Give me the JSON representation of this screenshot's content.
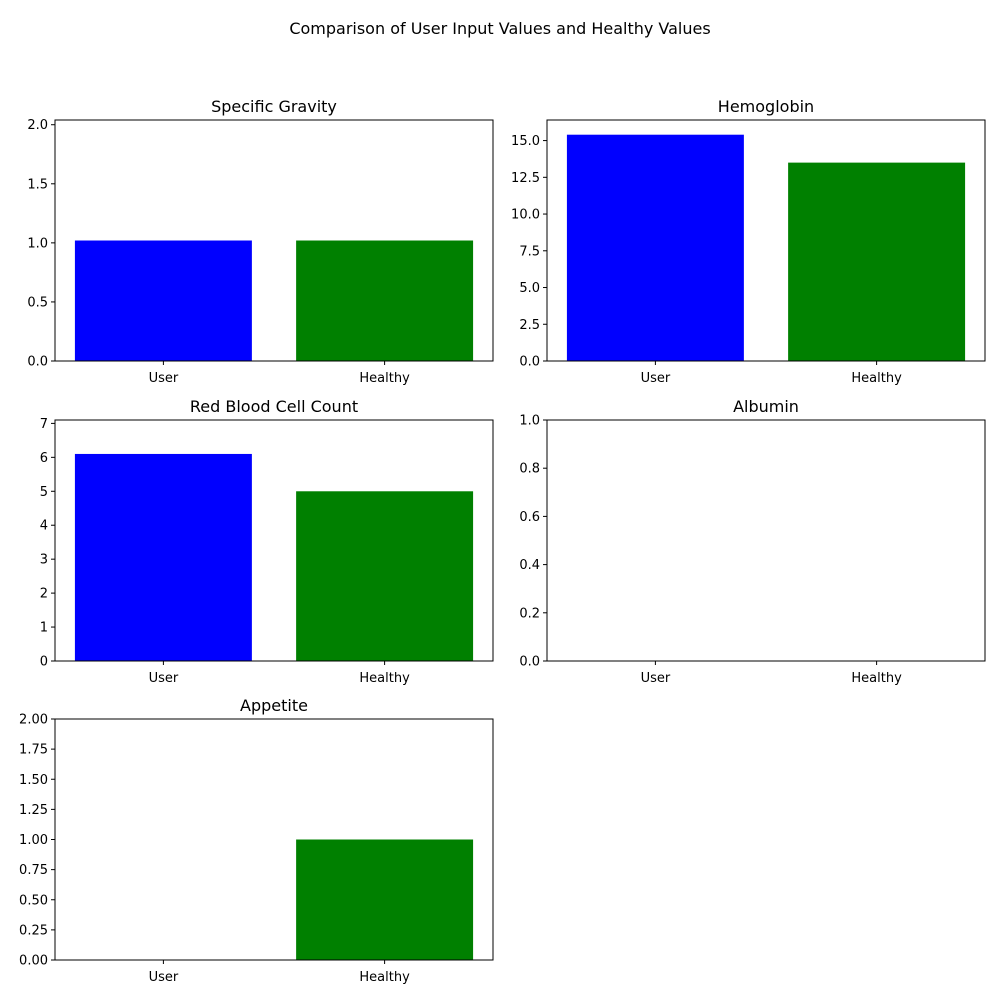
{
  "suptitle": "Comparison of User Input Values and Healthy Values",
  "colors": {
    "user": "#0000ff",
    "healthy": "#008000"
  },
  "chart_data": [
    {
      "type": "bar",
      "title": "Specific Gravity",
      "categories": [
        "User",
        "Healthy"
      ],
      "values": [
        1.02,
        1.02
      ],
      "ylim": [
        0,
        2.04
      ],
      "yticks": [
        0.0,
        0.5,
        1.0,
        1.5,
        2.0
      ],
      "ytick_labels": [
        "0.0",
        "0.5",
        "1.0",
        "1.5",
        "2.0"
      ],
      "grid": false
    },
    {
      "type": "bar",
      "title": "Hemoglobin",
      "categories": [
        "User",
        "Healthy"
      ],
      "values": [
        15.4,
        13.5
      ],
      "ylim": [
        0,
        16.4
      ],
      "yticks": [
        0.0,
        2.5,
        5.0,
        7.5,
        10.0,
        12.5,
        15.0
      ],
      "ytick_labels": [
        "0.0",
        "2.5",
        "5.0",
        "7.5",
        "10.0",
        "12.5",
        "15.0"
      ],
      "grid": false
    },
    {
      "type": "bar",
      "title": "Red Blood Cell Count",
      "categories": [
        "User",
        "Healthy"
      ],
      "values": [
        6.1,
        5.0
      ],
      "ylim": [
        0,
        7.1
      ],
      "yticks": [
        0,
        1,
        2,
        3,
        4,
        5,
        6,
        7
      ],
      "ytick_labels": [
        "0",
        "1",
        "2",
        "3",
        "4",
        "5",
        "6",
        "7"
      ],
      "grid": false
    },
    {
      "type": "bar",
      "title": "Albumin",
      "categories": [
        "User",
        "Healthy"
      ],
      "values": [
        0,
        0
      ],
      "ylim": [
        0,
        1.0
      ],
      "yticks": [
        0.0,
        0.2,
        0.4,
        0.6,
        0.8,
        1.0
      ],
      "ytick_labels": [
        "0.0",
        "0.2",
        "0.4",
        "0.6",
        "0.8",
        "1.0"
      ],
      "grid": false
    },
    {
      "type": "bar",
      "title": "Appetite",
      "categories": [
        "User",
        "Healthy"
      ],
      "values": [
        0,
        1.0
      ],
      "ylim": [
        0,
        2.0
      ],
      "yticks": [
        0.0,
        0.25,
        0.5,
        0.75,
        1.0,
        1.25,
        1.5,
        1.75,
        2.0
      ],
      "ytick_labels": [
        "0.00",
        "0.25",
        "0.50",
        "0.75",
        "1.00",
        "1.25",
        "1.50",
        "1.75",
        "2.00"
      ],
      "grid": false
    }
  ]
}
